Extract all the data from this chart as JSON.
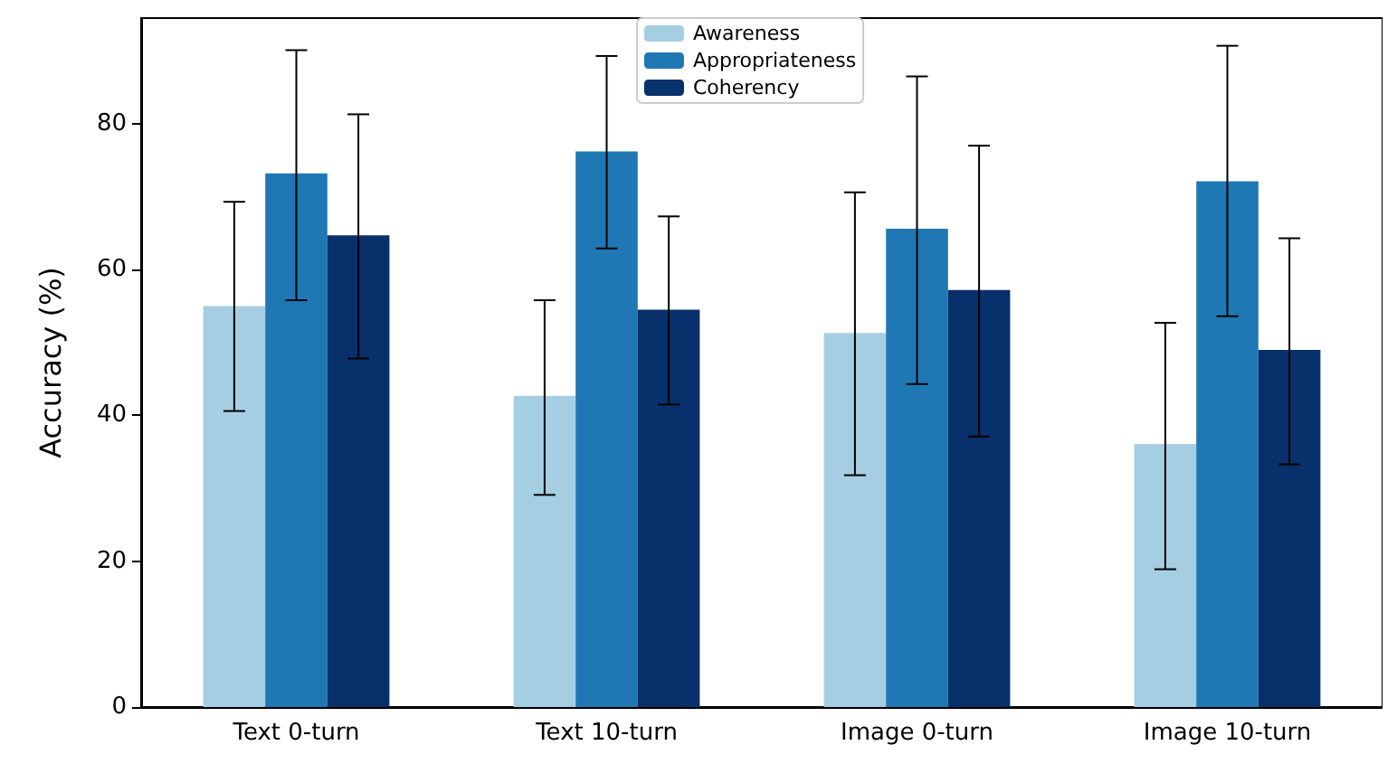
{
  "chart_data": {
    "type": "bar",
    "ylabel": "Accuracy (%)",
    "categories": [
      "Text 0-turn",
      "Text 10-turn",
      "Image 0-turn",
      "Image 10-turn"
    ],
    "series": [
      {
        "name": "Awareness",
        "color": "#a6cee3",
        "values": [
          55,
          42.7,
          51.3,
          36.1
        ],
        "errors": [
          [
            40.6,
            69.3
          ],
          [
            29.1,
            55.8
          ],
          [
            31.8,
            70.6
          ],
          [
            18.9,
            52.7
          ]
        ]
      },
      {
        "name": "Appropriateness",
        "color": "#1f78b4",
        "values": [
          73.2,
          76.2,
          65.6,
          72.1
        ],
        "errors": [
          [
            55.8,
            90.1
          ],
          [
            62.9,
            89.3
          ],
          [
            44.3,
            86.5
          ],
          [
            53.6,
            90.7
          ]
        ]
      },
      {
        "name": "Coherency",
        "color": "#08306b",
        "values": [
          64.7,
          54.5,
          57.2,
          49
        ],
        "errors": [
          [
            47.8,
            81.3
          ],
          [
            41.5,
            67.3
          ],
          [
            37.1,
            77
          ],
          [
            33.3,
            64.3
          ]
        ]
      }
    ],
    "ylim": [
      0,
      94.5
    ],
    "yticks": [
      0,
      20,
      40,
      60,
      80
    ],
    "grid": false,
    "legend": "top"
  }
}
